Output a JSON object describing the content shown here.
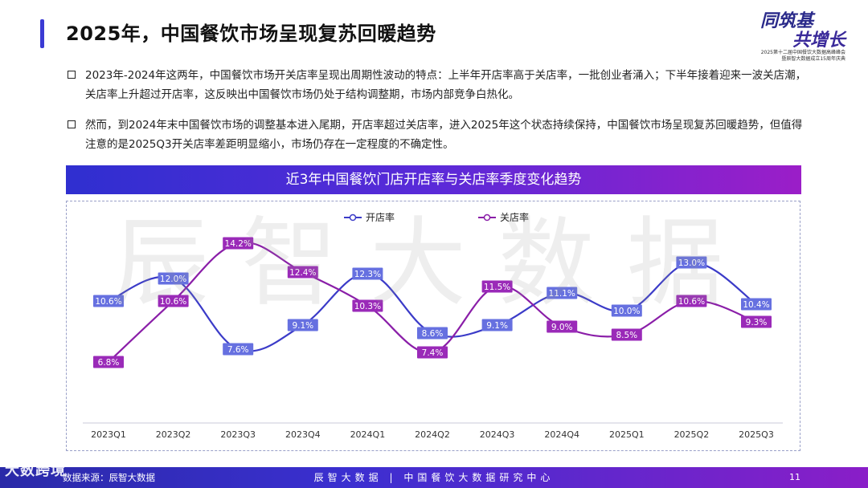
{
  "page": {
    "title": "2025年，中国餐饮市场呈现复苏回暖趋势",
    "page_number": "11"
  },
  "logo": {
    "line1": "同筑基",
    "line2": "共增长",
    "sub1": "2025第十二届中国餐饮大数据高峰峰会",
    "sub2": "暨辰智大数据成立15周年庆典"
  },
  "bullets": [
    "2023年-2024年这两年，中国餐饮市场开关店率呈现出周期性波动的特点：上半年开店率高于关店率，一批创业者涌入；下半年接着迎来一波关店潮，关店率上升超过开店率，这反映出中国餐饮市场仍处于结构调整期，市场内部竞争白热化。",
    "然而，到2024年末中国餐饮市场的调整基本进入尾期，开店率超过关店率，进入2025年这个状态持续保持，中国餐饮市场呈现复苏回暖趋势，但值得注意的是2025Q3开关店率差距明显缩小，市场仍存在一定程度的不确定性。"
  ],
  "watermark": "辰智大数据",
  "footer": {
    "source": "数据来源：辰智大数据",
    "center": "辰智大数据 | 中国餐饮大数据研究中心",
    "brand_mark": "大数跨境"
  },
  "chart_data": {
    "type": "line",
    "title": "近3年中国餐饮门店开店率与关店率季度变化趋势",
    "categories": [
      "2023Q1",
      "2023Q2",
      "2023Q3",
      "2023Q4",
      "2024Q1",
      "2024Q2",
      "2024Q3",
      "2024Q4",
      "2025Q1",
      "2025Q2",
      "2025Q3"
    ],
    "series": [
      {
        "name": "开店率",
        "color": "#3b3bc8",
        "label_bg": "#6670e0",
        "values": [
          10.6,
          12.0,
          7.6,
          9.1,
          12.3,
          8.6,
          9.1,
          11.1,
          10.0,
          13.0,
          10.4
        ]
      },
      {
        "name": "关店率",
        "color": "#8a1ea8",
        "label_bg": "#9a2ab8",
        "values": [
          6.8,
          10.6,
          14.2,
          12.4,
          10.3,
          7.4,
          11.5,
          9.0,
          8.5,
          10.6,
          9.3
        ]
      }
    ],
    "value_suffix": "%",
    "ylim": [
      5,
      15
    ],
    "legend": "top-center",
    "grid": false
  }
}
